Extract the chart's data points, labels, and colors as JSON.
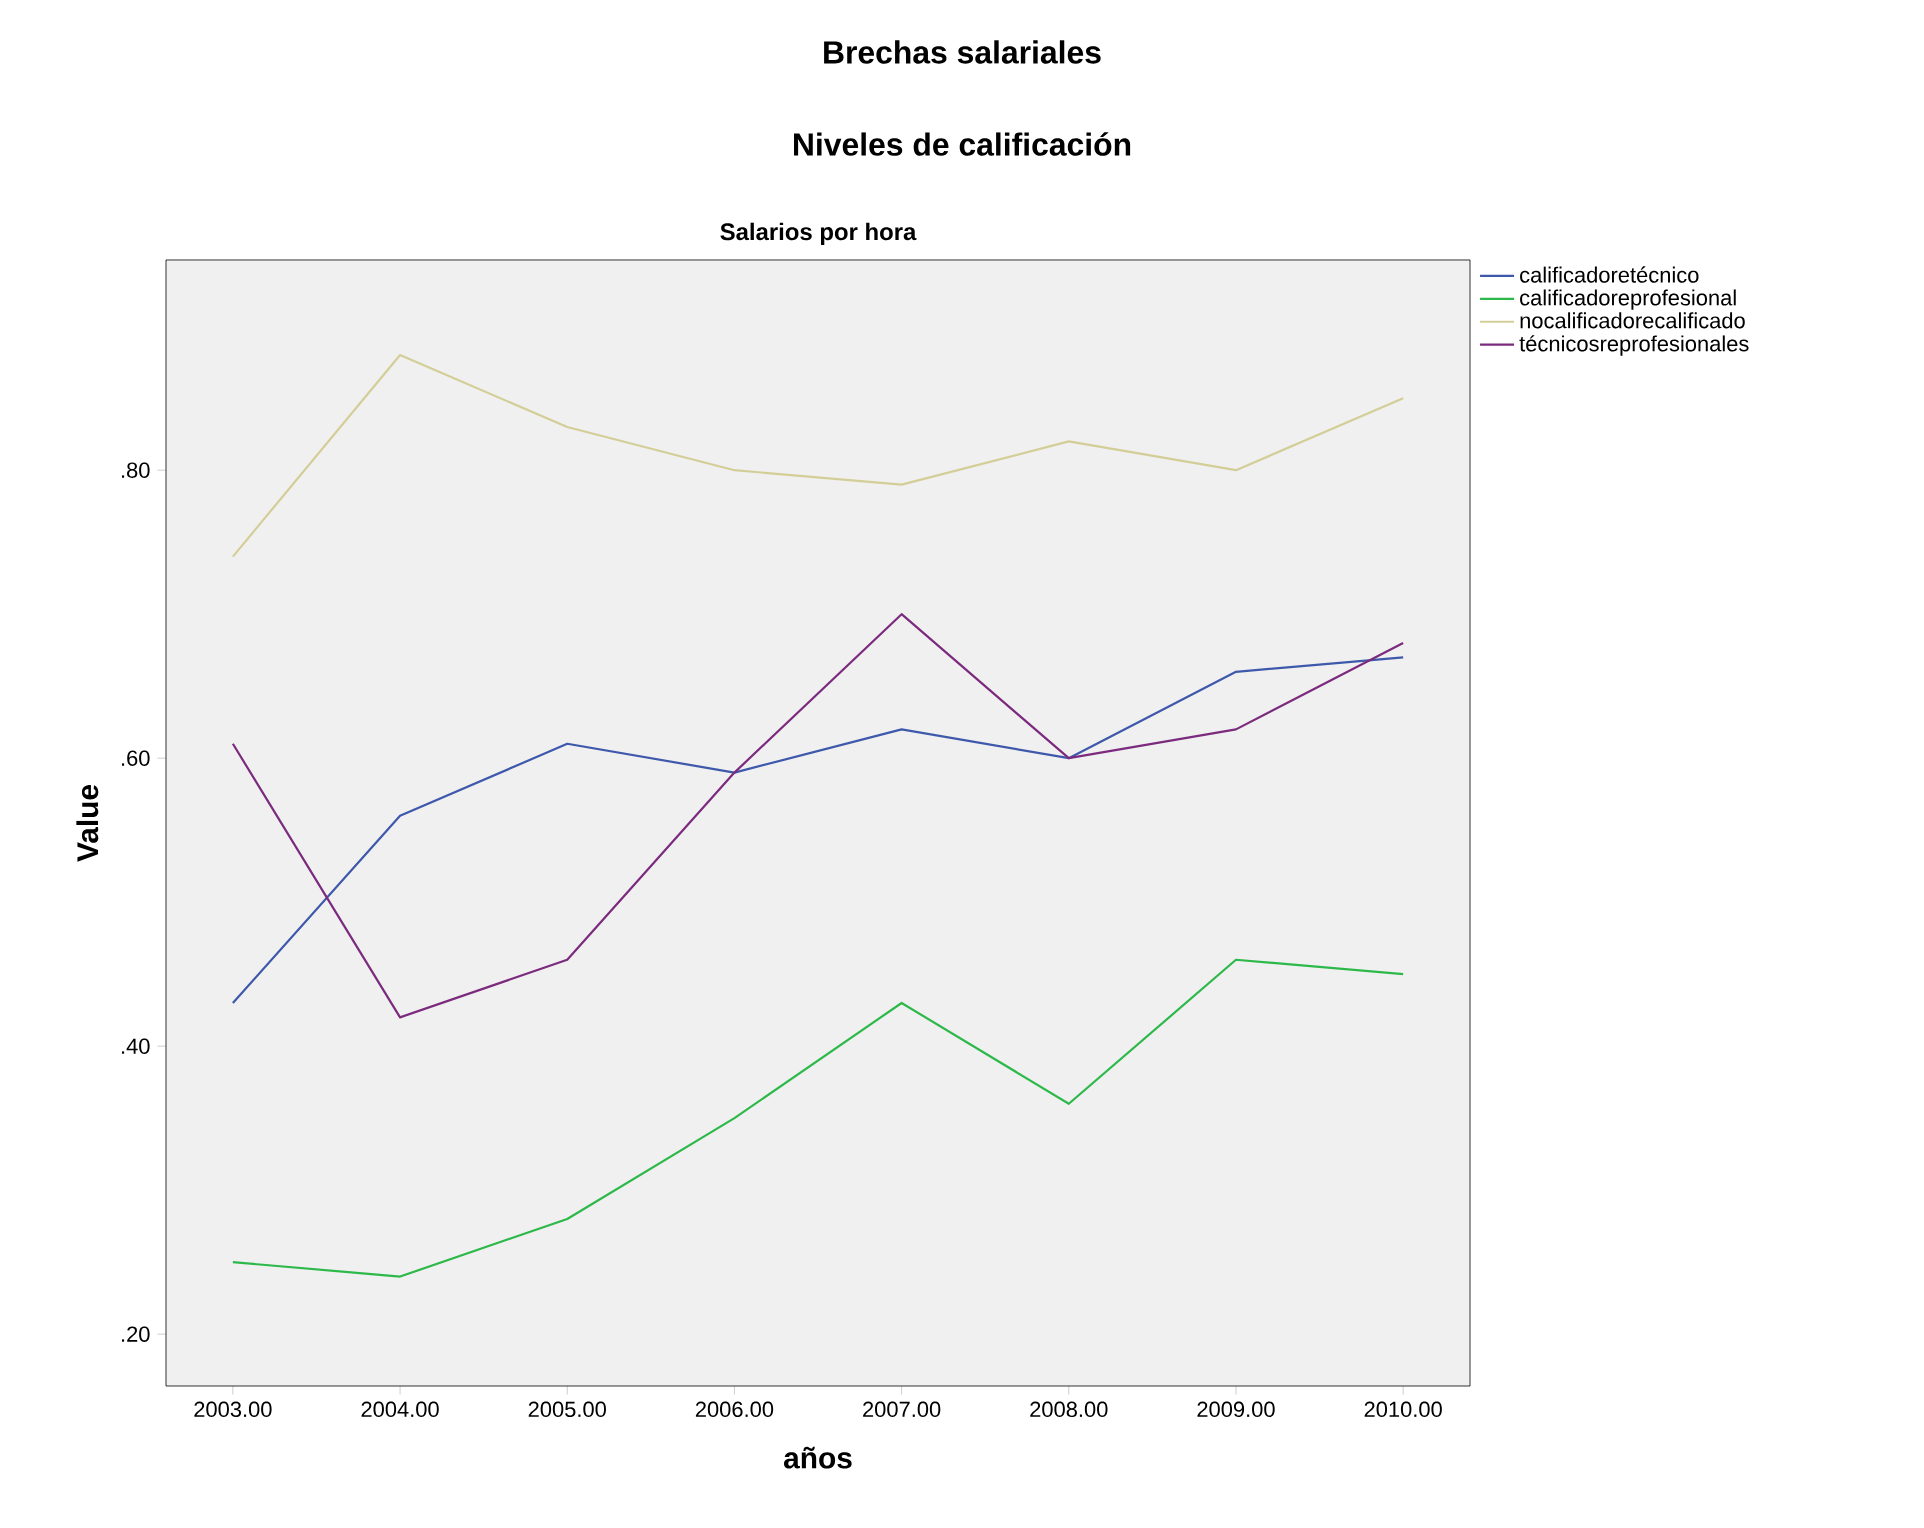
{
  "chart_data": {
    "type": "line",
    "title": "Brechas salariales",
    "subtitle": "Niveles de calificación",
    "annotations": [
      "Salarios por hora"
    ],
    "xlabel": "años",
    "ylabel": "Value",
    "x": [
      2003,
      2004,
      2005,
      2006,
      2007,
      2008,
      2009,
      2010
    ],
    "series": [
      {
        "name": "calificadoretécnico",
        "color": "#3e58ac",
        "values": [
          0.43,
          0.56,
          0.61,
          0.59,
          0.62,
          0.6,
          0.66,
          0.67
        ]
      },
      {
        "name": "calificadoreprofesional",
        "color": "#2db84a",
        "values": [
          0.25,
          0.24,
          0.28,
          0.35,
          0.43,
          0.36,
          0.46,
          0.45
        ]
      },
      {
        "name": "nocalificadorecalificado",
        "color": "#d3ce97",
        "values": [
          0.74,
          0.88,
          0.83,
          0.8,
          0.79,
          0.82,
          0.8,
          0.85
        ]
      },
      {
        "name": "técnicosreprofesionales",
        "color": "#7b2a7e",
        "values": [
          0.61,
          0.42,
          0.46,
          0.59,
          0.7,
          0.6,
          0.62,
          0.68
        ]
      }
    ],
    "xlim": [
      2002.6,
      2010.4
    ],
    "ylim": [
      0.164,
      0.946
    ],
    "xticks": [
      {
        "value": 2003,
        "label": "2003.00"
      },
      {
        "value": 2004,
        "label": "2004.00"
      },
      {
        "value": 2005,
        "label": "2005.00"
      },
      {
        "value": 2006,
        "label": "2006.00"
      },
      {
        "value": 2007,
        "label": "2007.00"
      },
      {
        "value": 2008,
        "label": "2008.00"
      },
      {
        "value": 2009,
        "label": "2009.00"
      },
      {
        "value": 2010,
        "label": "2010.00"
      }
    ],
    "yticks": [
      {
        "value": 0.2,
        "label": ".20"
      },
      {
        "value": 0.4,
        "label": ".40"
      },
      {
        "value": 0.6,
        "label": ".60"
      },
      {
        "value": 0.8,
        "label": ".80"
      }
    ],
    "grid": false,
    "legend": "top right",
    "marker": "none",
    "line_style": "solid"
  }
}
